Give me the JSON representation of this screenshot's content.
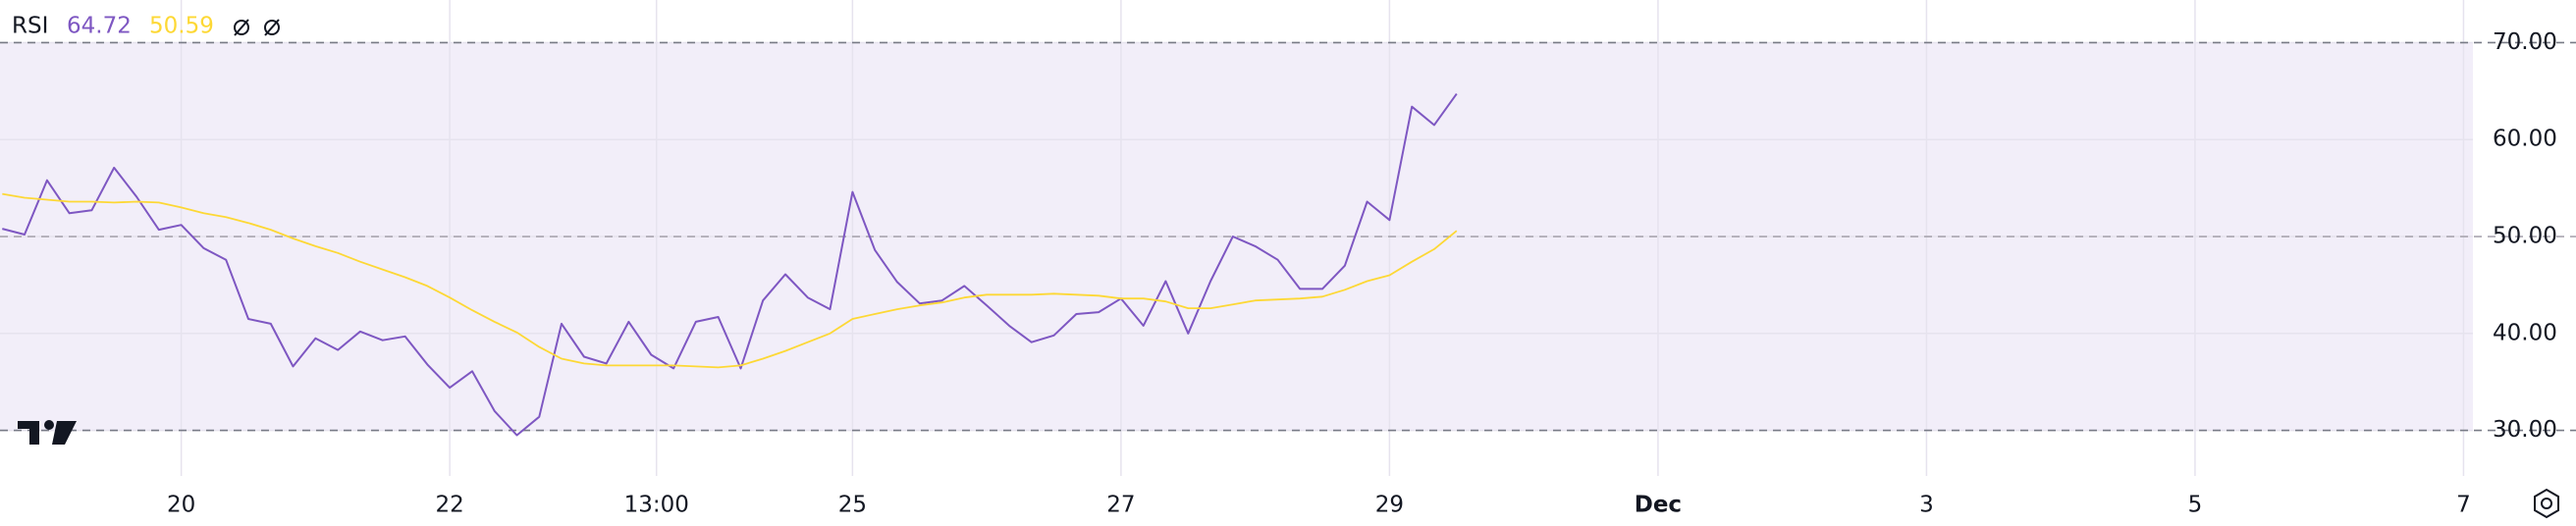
{
  "chart_data": {
    "type": "line",
    "title": "RSI",
    "x": [
      18.667,
      18.833,
      19,
      19.167,
      19.333,
      19.5,
      19.667,
      19.833,
      20,
      20.167,
      20.333,
      20.5,
      20.667,
      20.833,
      21,
      21.167,
      21.333,
      21.5,
      21.667,
      21.833,
      22,
      22.167,
      22.333,
      22.5,
      22.667,
      22.833,
      23,
      23.167,
      23.333,
      23.5,
      23.667,
      23.833,
      24,
      24.167,
      24.333,
      24.5,
      24.667,
      24.833,
      25,
      25.167,
      25.333,
      25.5,
      25.667,
      25.833,
      26,
      26.167,
      26.333,
      26.5,
      26.667,
      26.833,
      27,
      27.167,
      27.333,
      27.5,
      27.667,
      27.833,
      28,
      28.167,
      28.333,
      28.5,
      28.667,
      28.833,
      29,
      29.167,
      29.333,
      29.5
    ],
    "series": [
      {
        "color": "#7e57c2",
        "values": [
          50.8,
          50.2,
          55.8,
          52.4,
          52.7,
          57.1,
          54.1,
          50.7,
          51.2,
          48.8,
          47.6,
          41.5,
          41.0,
          36.6,
          39.5,
          38.3,
          40.2,
          39.3,
          39.7,
          36.8,
          34.4,
          36.1,
          32.0,
          29.5,
          31.4,
          41.0,
          37.6,
          36.9,
          41.2,
          37.8,
          36.4,
          41.2,
          41.7,
          36.4,
          43.4,
          46.1,
          43.7,
          42.5,
          54.6,
          48.6,
          45.3,
          43.1,
          43.4,
          44.9,
          42.9,
          40.8,
          39.1,
          39.8,
          42.0,
          42.2,
          43.6,
          40.8,
          45.4,
          40.0,
          45.4,
          50.0,
          49.0,
          47.6,
          44.6,
          44.6,
          47.0,
          53.6,
          51.7,
          63.4,
          61.5,
          64.72
        ]
      },
      {
        "color": "#fdd835",
        "values": [
          54.4,
          54.0,
          53.8,
          53.6,
          53.6,
          53.5,
          53.6,
          53.5,
          53.0,
          52.4,
          52.0,
          51.4,
          50.7,
          49.8,
          49.0,
          48.3,
          47.4,
          46.6,
          45.8,
          44.9,
          43.7,
          42.4,
          41.2,
          40.1,
          38.6,
          37.4,
          36.9,
          36.7,
          36.7,
          36.7,
          36.7,
          36.6,
          36.5,
          36.7,
          37.4,
          38.2,
          39.1,
          40.0,
          41.5,
          42.0,
          42.5,
          42.9,
          43.2,
          43.7,
          44.0,
          44.0,
          44.0,
          44.1,
          44.0,
          43.9,
          43.6,
          43.6,
          43.3,
          42.6,
          42.6,
          43.0,
          43.4,
          43.5,
          43.6,
          43.8,
          44.5,
          45.4,
          46.0,
          47.4,
          48.7,
          50.59
        ]
      }
    ],
    "xlim": [
      18.65,
      37.07
    ],
    "xticks": [
      20,
      22,
      {
        "value": 23.54,
        "label": "13:00"
      },
      25,
      27,
      29,
      {
        "value": 31,
        "label": "Dec"
      },
      {
        "value": 33,
        "label": "3"
      },
      {
        "value": 35,
        "label": "5"
      },
      {
        "value": 37,
        "label": "7"
      }
    ],
    "ylim": [
      25.3,
      74.4
    ],
    "yticks": [
      {
        "value": 30,
        "label": "30.00"
      },
      {
        "value": 40,
        "label": "40.00"
      },
      {
        "value": 50,
        "label": "50.00"
      },
      {
        "value": 60,
        "label": "60.00"
      },
      {
        "value": 70,
        "label": "70.00"
      }
    ],
    "band_lines": [
      70,
      50,
      30
    ],
    "band_color": "#7e57c2",
    "grid": true
  }
}
